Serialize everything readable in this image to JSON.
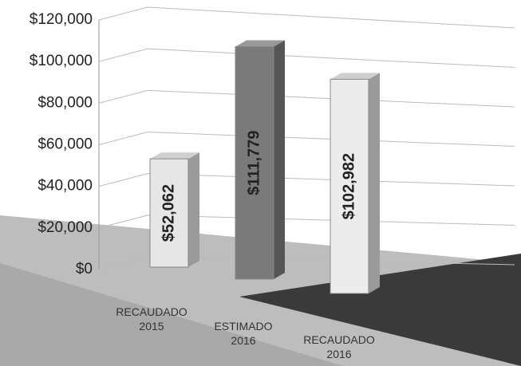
{
  "chart_data": {
    "type": "bar3d",
    "categories": [
      "RECAUDADO\n2015",
      "ESTIMADO\n2016",
      "RECAUDADO\n2016"
    ],
    "values": [
      52062,
      111779,
      102982
    ],
    "value_labels": [
      "$52,062",
      "$111,779",
      "$102,982"
    ],
    "colors": [
      "#e6e6e6",
      "#7a7a7a",
      "#ececec"
    ],
    "ylim": [
      0,
      120000
    ],
    "yticks": [
      {
        "value": 0,
        "label": "$0"
      },
      {
        "value": 20000,
        "label": "$20,000"
      },
      {
        "value": 40000,
        "label": "$40,000"
      },
      {
        "value": 60000,
        "label": "$60,000"
      },
      {
        "value": 80000,
        "label": "$80,000"
      },
      {
        "value": 100000,
        "label": "$100,000"
      },
      {
        "value": 120000,
        "label": "$120,000"
      }
    ],
    "grid": true
  }
}
